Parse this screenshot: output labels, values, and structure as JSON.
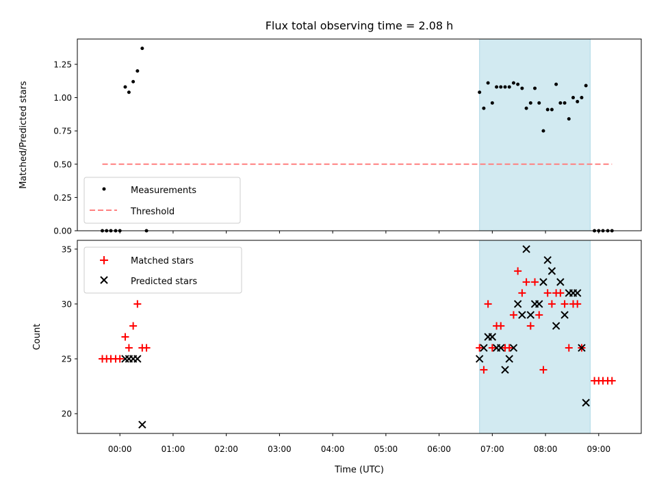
{
  "chart_data": {
    "type": "scatter",
    "title": "Flux total observing time = 2.08 h",
    "xlabel": "Time (UTC)",
    "x_units": "hours (UTC)",
    "xlim": [
      -0.8,
      9.8
    ],
    "x_ticks": [
      {
        "value": 0,
        "label": "00:00"
      },
      {
        "value": 1,
        "label": "01:00"
      },
      {
        "value": 2,
        "label": "02:00"
      },
      {
        "value": 3,
        "label": "03:00"
      },
      {
        "value": 4,
        "label": "04:00"
      },
      {
        "value": 5,
        "label": "05:00"
      },
      {
        "value": 6,
        "label": "06:00"
      },
      {
        "value": 7,
        "label": "07:00"
      },
      {
        "value": 8,
        "label": "08:00"
      },
      {
        "value": 9,
        "label": "09:00"
      }
    ],
    "observing_window": {
      "start": 6.76,
      "end": 8.84,
      "color": "#add8e6"
    },
    "top_panel": {
      "ylabel": "Matched/Predicted stars",
      "ylim": [
        0,
        1.44
      ],
      "y_ticks": [
        {
          "value": 0,
          "label": "0.00"
        },
        {
          "value": 0.25,
          "label": "0.25"
        },
        {
          "value": 0.5,
          "label": "0.50"
        },
        {
          "value": 0.75,
          "label": "0.75"
        },
        {
          "value": 1.0,
          "label": "1.00"
        },
        {
          "value": 1.25,
          "label": "1.25"
        }
      ],
      "threshold": {
        "value": 0.5,
        "x_start": -0.33,
        "x_end": 9.25,
        "color": "#ff7f7f"
      },
      "legend": [
        {
          "label": "Measurements",
          "marker": "dot"
        },
        {
          "label": "Threshold",
          "marker": "dashed-line"
        }
      ],
      "measurements": [
        {
          "x": -0.33,
          "y": 0
        },
        {
          "x": -0.25,
          "y": 0
        },
        {
          "x": -0.17,
          "y": 0
        },
        {
          "x": -0.08,
          "y": 0
        },
        {
          "x": 0.0,
          "y": 0
        },
        {
          "x": 0.1,
          "y": 1.08
        },
        {
          "x": 0.17,
          "y": 1.04
        },
        {
          "x": 0.25,
          "y": 1.12
        },
        {
          "x": 0.33,
          "y": 1.2
        },
        {
          "x": 0.42,
          "y": 1.37
        },
        {
          "x": 0.5,
          "y": 0
        },
        {
          "x": 6.76,
          "y": 1.04
        },
        {
          "x": 6.84,
          "y": 0.92
        },
        {
          "x": 6.92,
          "y": 1.11
        },
        {
          "x": 7.0,
          "y": 0.96
        },
        {
          "x": 7.08,
          "y": 1.08
        },
        {
          "x": 7.16,
          "y": 1.08
        },
        {
          "x": 7.24,
          "y": 1.08
        },
        {
          "x": 7.32,
          "y": 1.08
        },
        {
          "x": 7.4,
          "y": 1.11
        },
        {
          "x": 7.48,
          "y": 1.1
        },
        {
          "x": 7.56,
          "y": 1.07
        },
        {
          "x": 7.64,
          "y": 0.92
        },
        {
          "x": 7.72,
          "y": 0.96
        },
        {
          "x": 7.8,
          "y": 1.07
        },
        {
          "x": 7.88,
          "y": 0.96
        },
        {
          "x": 7.96,
          "y": 0.75
        },
        {
          "x": 8.04,
          "y": 0.91
        },
        {
          "x": 8.12,
          "y": 0.91
        },
        {
          "x": 8.2,
          "y": 1.1
        },
        {
          "x": 8.28,
          "y": 0.96
        },
        {
          "x": 8.36,
          "y": 0.96
        },
        {
          "x": 8.44,
          "y": 0.84
        },
        {
          "x": 8.52,
          "y": 1.0
        },
        {
          "x": 8.6,
          "y": 0.97
        },
        {
          "x": 8.68,
          "y": 1.0
        },
        {
          "x": 8.76,
          "y": 1.09
        },
        {
          "x": 8.92,
          "y": 0
        },
        {
          "x": 9.0,
          "y": 0
        },
        {
          "x": 9.08,
          "y": 0
        },
        {
          "x": 9.17,
          "y": 0
        },
        {
          "x": 9.25,
          "y": 0
        }
      ]
    },
    "bottom_panel": {
      "ylabel": "Count",
      "ylim": [
        18.2,
        35.8
      ],
      "y_ticks": [
        {
          "value": 20,
          "label": "20"
        },
        {
          "value": 25,
          "label": "25"
        },
        {
          "value": 30,
          "label": "30"
        },
        {
          "value": 35,
          "label": "35"
        }
      ],
      "legend": [
        {
          "label": "Matched stars",
          "marker": "plus",
          "color": "#ff0000"
        },
        {
          "label": "Predicted stars",
          "marker": "x",
          "color": "#000000"
        }
      ],
      "matched_stars": [
        {
          "x": -0.33,
          "y": 25
        },
        {
          "x": -0.25,
          "y": 25
        },
        {
          "x": -0.17,
          "y": 25
        },
        {
          "x": -0.08,
          "y": 25
        },
        {
          "x": 0.0,
          "y": 25
        },
        {
          "x": 0.1,
          "y": 27
        },
        {
          "x": 0.17,
          "y": 26
        },
        {
          "x": 0.25,
          "y": 28
        },
        {
          "x": 0.33,
          "y": 30
        },
        {
          "x": 0.42,
          "y": 26
        },
        {
          "x": 0.5,
          "y": 26
        },
        {
          "x": 6.76,
          "y": 26
        },
        {
          "x": 6.84,
          "y": 24
        },
        {
          "x": 6.92,
          "y": 30
        },
        {
          "x": 7.0,
          "y": 26
        },
        {
          "x": 7.08,
          "y": 28
        },
        {
          "x": 7.16,
          "y": 28
        },
        {
          "x": 7.24,
          "y": 26
        },
        {
          "x": 7.32,
          "y": 26
        },
        {
          "x": 7.4,
          "y": 29
        },
        {
          "x": 7.48,
          "y": 33
        },
        {
          "x": 7.56,
          "y": 31
        },
        {
          "x": 7.64,
          "y": 32
        },
        {
          "x": 7.72,
          "y": 28
        },
        {
          "x": 7.8,
          "y": 32
        },
        {
          "x": 7.88,
          "y": 29
        },
        {
          "x": 7.96,
          "y": 24
        },
        {
          "x": 8.04,
          "y": 31
        },
        {
          "x": 8.12,
          "y": 30
        },
        {
          "x": 8.2,
          "y": 31
        },
        {
          "x": 8.28,
          "y": 31
        },
        {
          "x": 8.36,
          "y": 30
        },
        {
          "x": 8.44,
          "y": 26
        },
        {
          "x": 8.52,
          "y": 30
        },
        {
          "x": 8.6,
          "y": 30
        },
        {
          "x": 8.68,
          "y": 26
        },
        {
          "x": 8.92,
          "y": 23
        },
        {
          "x": 9.0,
          "y": 23
        },
        {
          "x": 9.08,
          "y": 23
        },
        {
          "x": 9.17,
          "y": 23
        },
        {
          "x": 9.25,
          "y": 23
        }
      ],
      "predicted_stars": [
        {
          "x": 0.1,
          "y": 25
        },
        {
          "x": 0.17,
          "y": 25
        },
        {
          "x": 0.25,
          "y": 25
        },
        {
          "x": 0.33,
          "y": 25
        },
        {
          "x": 0.42,
          "y": 19
        },
        {
          "x": 6.76,
          "y": 25
        },
        {
          "x": 6.84,
          "y": 26
        },
        {
          "x": 6.92,
          "y": 27
        },
        {
          "x": 7.0,
          "y": 27
        },
        {
          "x": 7.08,
          "y": 26
        },
        {
          "x": 7.16,
          "y": 26
        },
        {
          "x": 7.24,
          "y": 24
        },
        {
          "x": 7.32,
          "y": 25
        },
        {
          "x": 7.4,
          "y": 26
        },
        {
          "x": 7.48,
          "y": 30
        },
        {
          "x": 7.56,
          "y": 29
        },
        {
          "x": 7.64,
          "y": 35
        },
        {
          "x": 7.72,
          "y": 29
        },
        {
          "x": 7.8,
          "y": 30
        },
        {
          "x": 7.88,
          "y": 30
        },
        {
          "x": 7.96,
          "y": 32
        },
        {
          "x": 8.04,
          "y": 34
        },
        {
          "x": 8.12,
          "y": 33
        },
        {
          "x": 8.2,
          "y": 28
        },
        {
          "x": 8.28,
          "y": 32
        },
        {
          "x": 8.36,
          "y": 29
        },
        {
          "x": 8.44,
          "y": 31
        },
        {
          "x": 8.52,
          "y": 31
        },
        {
          "x": 8.6,
          "y": 31
        },
        {
          "x": 8.68,
          "y": 26
        },
        {
          "x": 8.76,
          "y": 21
        }
      ]
    }
  }
}
